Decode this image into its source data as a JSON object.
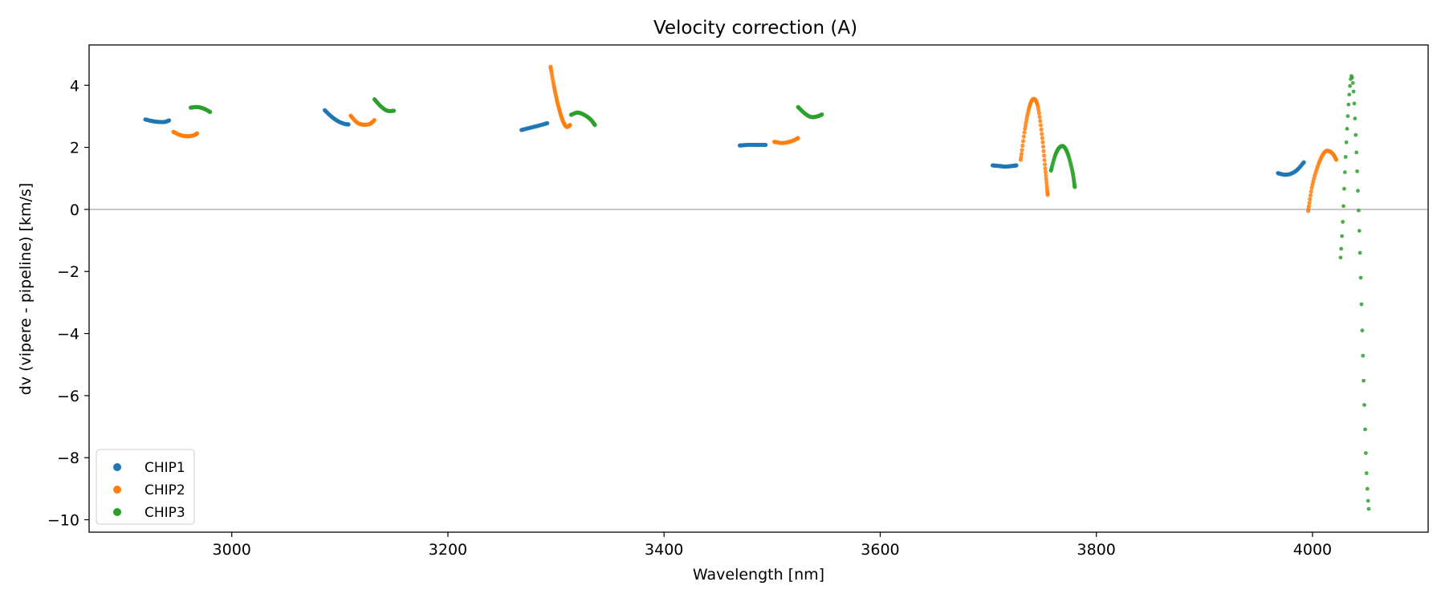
{
  "chart_data": {
    "type": "scatter",
    "title": "Velocity correction (A)",
    "xlabel": "Wavelength [nm]",
    "ylabel": "dv (vipere - pipeline) [km/s]",
    "xlim": [
      2868,
      4107
    ],
    "ylim": [
      -10.4,
      5.3
    ],
    "xticks": [
      3000,
      3200,
      3400,
      3600,
      3800,
      4000
    ],
    "xtick_labels": [
      "3000",
      "3200",
      "3400",
      "3600",
      "3800",
      "4000"
    ],
    "yticks": [
      4,
      2,
      0,
      -2,
      -4,
      -6,
      -8,
      -10
    ],
    "ytick_labels": [
      "4",
      "2",
      "0",
      "−2",
      "−4",
      "−6",
      "−8",
      "−10"
    ],
    "reference_line_y": 0,
    "grid": false,
    "legend_position": "lower-left",
    "series": [
      {
        "name": "CHIP1",
        "color": "#1f77b4",
        "segments": [
          [
            [
              2920,
              2.9
            ],
            [
              2926,
              2.85
            ],
            [
              2932,
              2.82
            ],
            [
              2938,
              2.82
            ],
            [
              2942,
              2.87
            ]
          ],
          [
            [
              3086,
              3.2
            ],
            [
              3092,
              3.0
            ],
            [
              3098,
              2.85
            ],
            [
              3104,
              2.76
            ],
            [
              3108,
              2.74
            ]
          ],
          [
            [
              3268,
              2.56
            ],
            [
              3276,
              2.63
            ],
            [
              3284,
              2.7
            ],
            [
              3292,
              2.78
            ]
          ],
          [
            [
              3470,
              2.06
            ],
            [
              3478,
              2.08
            ],
            [
              3486,
              2.08
            ],
            [
              3494,
              2.08
            ]
          ],
          [
            [
              3704,
              1.42
            ],
            [
              3710,
              1.4
            ],
            [
              3716,
              1.38
            ],
            [
              3722,
              1.4
            ],
            [
              3726,
              1.42
            ]
          ],
          [
            [
              3968,
              1.17
            ],
            [
              3974,
              1.12
            ],
            [
              3980,
              1.15
            ],
            [
              3986,
              1.28
            ],
            [
              3992,
              1.52
            ]
          ]
        ]
      },
      {
        "name": "CHIP2",
        "color": "#ff7f0e",
        "segments": [
          [
            [
              2946,
              2.5
            ],
            [
              2952,
              2.4
            ],
            [
              2958,
              2.36
            ],
            [
              2964,
              2.38
            ],
            [
              2968,
              2.45
            ]
          ],
          [
            [
              3110,
              3.02
            ],
            [
              3116,
              2.8
            ],
            [
              3122,
              2.73
            ],
            [
              3128,
              2.76
            ],
            [
              3132,
              2.88
            ]
          ],
          [
            [
              3295,
              4.6
            ],
            [
              3298,
              4.0
            ],
            [
              3301,
              3.5
            ],
            [
              3304,
              3.1
            ],
            [
              3307,
              2.8
            ],
            [
              3310,
              2.66
            ],
            [
              3313,
              2.72
            ]
          ],
          [
            [
              3502,
              2.18
            ],
            [
              3510,
              2.14
            ],
            [
              3518,
              2.2
            ],
            [
              3524,
              2.3
            ]
          ],
          [
            [
              3730,
              1.6
            ],
            [
              3734,
              2.6
            ],
            [
              3738,
              3.3
            ],
            [
              3742,
              3.56
            ],
            [
              3746,
              3.3
            ],
            [
              3750,
              2.3
            ],
            [
              3753,
              1.2
            ],
            [
              3755,
              0.47
            ]
          ],
          [
            [
              3996,
              -0.05
            ],
            [
              4000,
              0.8
            ],
            [
              4006,
              1.5
            ],
            [
              4012,
              1.87
            ],
            [
              4018,
              1.82
            ],
            [
              4022,
              1.6
            ]
          ]
        ]
      },
      {
        "name": "CHIP3",
        "color": "#2ca02c",
        "segments": [
          [
            [
              2962,
              3.28
            ],
            [
              2968,
              3.3
            ],
            [
              2974,
              3.25
            ],
            [
              2980,
              3.14
            ]
          ],
          [
            [
              3132,
              3.55
            ],
            [
              3138,
              3.32
            ],
            [
              3144,
              3.18
            ],
            [
              3150,
              3.18
            ]
          ],
          [
            [
              3314,
              3.05
            ],
            [
              3320,
              3.12
            ],
            [
              3326,
              3.05
            ],
            [
              3332,
              2.9
            ],
            [
              3336,
              2.72
            ]
          ],
          [
            [
              3524,
              3.3
            ],
            [
              3530,
              3.1
            ],
            [
              3536,
              2.98
            ],
            [
              3542,
              3.0
            ],
            [
              3546,
              3.06
            ]
          ],
          [
            [
              3758,
              1.25
            ],
            [
              3762,
              1.75
            ],
            [
              3766,
              2.0
            ],
            [
              3770,
              2.02
            ],
            [
              3774,
              1.75
            ],
            [
              3778,
              1.2
            ],
            [
              3780,
              0.72
            ]
          ],
          [
            [
              4026,
              -1.55
            ],
            [
              4028,
              -0.4
            ],
            [
              4030,
              1.2
            ],
            [
              4032,
              2.6
            ],
            [
              4034,
              3.7
            ],
            [
              4036,
              4.3
            ],
            [
              4038,
              3.8
            ],
            [
              4040,
              2.4
            ],
            [
              4042,
              0.6
            ],
            [
              4044,
              -1.4
            ],
            [
              4046,
              -3.9
            ],
            [
              4048,
              -6.3
            ],
            [
              4050,
              -8.5
            ],
            [
              4052,
              -9.65
            ]
          ]
        ]
      }
    ]
  }
}
